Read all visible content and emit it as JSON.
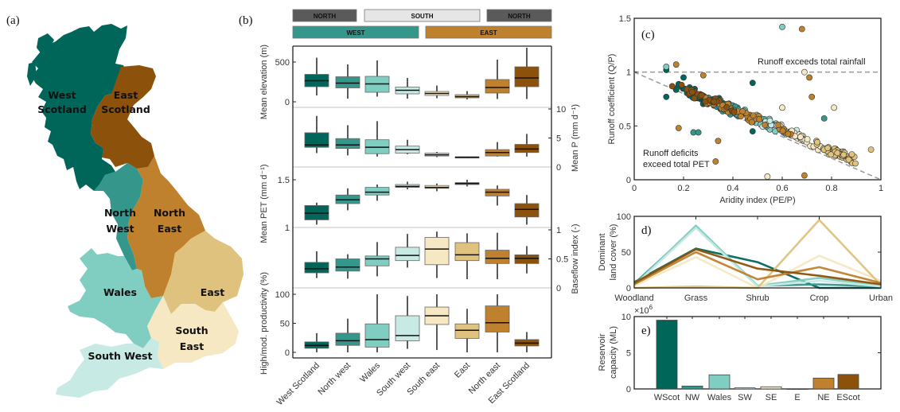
{
  "figure": {
    "panel_labels": {
      "a": "(a)",
      "b": "(b)",
      "c": "(c)",
      "d": "d)",
      "e": "e)"
    }
  },
  "colors": {
    "west_scotland": "#00665a",
    "north_west": "#35968c",
    "wales": "#80cdc1",
    "south_west": "#c7eae5",
    "south_east": "#f6e8c3",
    "east": "#dfc27d",
    "north_east": "#bf812d",
    "east_scotland": "#8c510a",
    "north_header": "#5a5a5a",
    "south_header": "#e6e6e6"
  },
  "map": {
    "regions": [
      {
        "key": "west_scotland",
        "label_lines": [
          "West",
          "Scotland"
        ]
      },
      {
        "key": "east_scotland",
        "label_lines": [
          "East",
          "Scotland"
        ]
      },
      {
        "key": "north_west",
        "label_lines": [
          "North",
          "West"
        ]
      },
      {
        "key": "north_east",
        "label_lines": [
          "North",
          "East"
        ]
      },
      {
        "key": "wales",
        "label_lines": [
          "Wales"
        ]
      },
      {
        "key": "east",
        "label_lines": [
          "East"
        ]
      },
      {
        "key": "south_east",
        "label_lines": [
          "South",
          "East"
        ]
      },
      {
        "key": "south_west",
        "label_lines": [
          "South West"
        ]
      }
    ]
  },
  "headers": {
    "row1": [
      {
        "label": "NORTH",
        "kind": "north"
      },
      {
        "label": "SOUTH",
        "kind": "south"
      },
      {
        "label": "NORTH",
        "kind": "north"
      }
    ],
    "row2": [
      {
        "label": "WEST",
        "kind": "west"
      },
      {
        "label": "EAST",
        "kind": "east"
      }
    ]
  },
  "chart_data": [
    {
      "id": "b",
      "type": "box",
      "categories": [
        "West Scotland",
        "North west",
        "Wales",
        "South west",
        "South east",
        "East",
        "North east",
        "East Scotland"
      ],
      "category_colors": [
        "west_scotland",
        "north_west",
        "wales",
        "south_west",
        "south_east",
        "east",
        "north_east",
        "east_scotland"
      ],
      "subplots": [
        {
          "ylabel": "Mean elevation (m)",
          "side": "left",
          "ylim": [
            -50,
            700
          ],
          "ticks": [
            0,
            500
          ],
          "boxes": [
            {
              "whislo": 80,
              "q1": 190,
              "med": 265,
              "q3": 345,
              "whishi": 555
            },
            {
              "whislo": 40,
              "q1": 175,
              "med": 235,
              "q3": 315,
              "whishi": 470
            },
            {
              "whislo": 65,
              "q1": 120,
              "med": 225,
              "q3": 320,
              "whishi": 520
            },
            {
              "whislo": 40,
              "q1": 100,
              "med": 145,
              "q3": 185,
              "whishi": 300
            },
            {
              "whislo": 45,
              "q1": 80,
              "med": 105,
              "q3": 130,
              "whishi": 205
            },
            {
              "whislo": 30,
              "q1": 50,
              "med": 65,
              "q3": 90,
              "whishi": 135
            },
            {
              "whislo": 35,
              "q1": 110,
              "med": 180,
              "q3": 280,
              "whishi": 530
            },
            {
              "whislo": 35,
              "q1": 190,
              "med": 300,
              "q3": 440,
              "whishi": 680
            }
          ]
        },
        {
          "ylabel": "Mean P (mm d⁻¹)",
          "side": "right",
          "ylim": [
            0,
            11
          ],
          "ticks": [
            0,
            5,
            10
          ],
          "boxes": [
            {
              "whislo": 2.4,
              "q1": 3.4,
              "med": 3.8,
              "q3": 5.9,
              "whishi": 8.8
            },
            {
              "whislo": 2.0,
              "q1": 3.2,
              "med": 3.8,
              "q3": 4.9,
              "whishi": 7.2
            },
            {
              "whislo": 1.8,
              "q1": 2.3,
              "med": 3.4,
              "q3": 4.7,
              "whishi": 7.9
            },
            {
              "whislo": 2.2,
              "q1": 2.4,
              "med": 3.0,
              "q3": 3.6,
              "whishi": 4.7
            },
            {
              "whislo": 1.7,
              "q1": 1.9,
              "med": 2.1,
              "q3": 2.4,
              "whishi": 2.6
            },
            {
              "whislo": 1.6,
              "q1": 1.7,
              "med": 1.7,
              "q3": 1.75,
              "whishi": 1.8
            },
            {
              "whislo": 1.8,
              "q1": 1.9,
              "med": 2.5,
              "q3": 3.0,
              "whishi": 4.3
            },
            {
              "whislo": 1.8,
              "q1": 2.5,
              "med": 3.1,
              "q3": 3.9,
              "whishi": 5.7
            }
          ]
        },
        {
          "ylabel": "Mean PET (mm d⁻¹)",
          "side": "left",
          "ylim": [
            1.0,
            1.62
          ],
          "ticks": [
            1,
            1.5
          ],
          "boxes": [
            {
              "whislo": 1.03,
              "q1": 1.08,
              "med": 1.15,
              "q3": 1.23,
              "whishi": 1.26
            },
            {
              "whislo": 1.18,
              "q1": 1.25,
              "med": 1.29,
              "q3": 1.34,
              "whishi": 1.41
            },
            {
              "whislo": 1.28,
              "q1": 1.34,
              "med": 1.37,
              "q3": 1.42,
              "whishi": 1.45
            },
            {
              "whislo": 1.4,
              "q1": 1.42,
              "med": 1.43,
              "q3": 1.45,
              "whishi": 1.48
            },
            {
              "whislo": 1.38,
              "q1": 1.41,
              "med": 1.42,
              "q3": 1.44,
              "whishi": 1.46
            },
            {
              "whislo": 1.43,
              "q1": 1.45,
              "med": 1.46,
              "q3": 1.47,
              "whishi": 1.5
            },
            {
              "whislo": 1.23,
              "q1": 1.33,
              "med": 1.37,
              "q3": 1.4,
              "whishi": 1.44
            },
            {
              "whislo": 1.03,
              "q1": 1.11,
              "med": 1.19,
              "q3": 1.25,
              "whishi": 1.34
            }
          ]
        },
        {
          "ylabel": "Baseflow index (-)",
          "side": "right",
          "ylim": [
            0,
            1.05
          ],
          "ticks": [
            0,
            0.5,
            1
          ],
          "boxes": [
            {
              "whislo": 0.17,
              "q1": 0.26,
              "med": 0.33,
              "q3": 0.44,
              "whishi": 0.63
            },
            {
              "whislo": 0.16,
              "q1": 0.29,
              "med": 0.36,
              "q3": 0.5,
              "whishi": 0.58
            },
            {
              "whislo": 0.2,
              "q1": 0.38,
              "med": 0.5,
              "q3": 0.55,
              "whishi": 0.79
            },
            {
              "whislo": 0.35,
              "q1": 0.47,
              "med": 0.56,
              "q3": 0.7,
              "whishi": 0.93
            },
            {
              "whislo": 0.17,
              "q1": 0.4,
              "med": 0.67,
              "q3": 0.87,
              "whishi": 0.97
            },
            {
              "whislo": 0.15,
              "q1": 0.47,
              "med": 0.57,
              "q3": 0.78,
              "whishi": 0.94
            },
            {
              "whislo": 0.15,
              "q1": 0.42,
              "med": 0.51,
              "q3": 0.65,
              "whishi": 0.95
            },
            {
              "whislo": 0.25,
              "q1": 0.42,
              "med": 0.51,
              "q3": 0.57,
              "whishi": 0.72
            }
          ]
        },
        {
          "ylabel": "High/mod. productivity (%)",
          "side": "left",
          "ylim": [
            0,
            110
          ],
          "ticks": [
            0,
            50,
            100
          ],
          "boxes": [
            {
              "whislo": 0,
              "q1": 7,
              "med": 12,
              "q3": 18,
              "whishi": 33
            },
            {
              "whislo": 0,
              "q1": 12,
              "med": 20,
              "q3": 33,
              "whishi": 58
            },
            {
              "whislo": 0,
              "q1": 9,
              "med": 22,
              "q3": 49,
              "whishi": 100
            },
            {
              "whislo": 6,
              "q1": 20,
              "med": 29,
              "q3": 63,
              "whishi": 97
            },
            {
              "whislo": 4,
              "q1": 48,
              "med": 63,
              "q3": 78,
              "whishi": 100
            },
            {
              "whislo": 0,
              "q1": 24,
              "med": 38,
              "q3": 49,
              "whishi": 75
            },
            {
              "whislo": 0,
              "q1": 35,
              "med": 51,
              "q3": 80,
              "whishi": 100
            },
            {
              "whislo": 0,
              "q1": 11,
              "med": 16,
              "q3": 22,
              "whishi": 35
            }
          ]
        }
      ]
    },
    {
      "id": "c",
      "type": "scatter",
      "title": "",
      "xlabel": "Aridity index (PE/P)",
      "ylabel": "Runoff coefficient (Q/P)",
      "xlim": [
        0,
        1
      ],
      "ylim": [
        0,
        1.5
      ],
      "xticks": [
        0,
        0.2,
        0.4,
        0.6,
        0.8,
        1
      ],
      "yticks": [
        0,
        0.5,
        1,
        1.5
      ],
      "annotations": [
        "Runoff exceeds total rainfall",
        "Runoff deficits",
        "exceed total PET"
      ],
      "reference_lines": [
        {
          "kind": "horizontal",
          "y": 1,
          "style": "dashed"
        },
        {
          "kind": "diagonal",
          "from": [
            0,
            1
          ],
          "to": [
            1,
            0
          ],
          "style": "dashed"
        }
      ],
      "series": [
        {
          "name": "West Scotland",
          "color": "west_scotland",
          "center_x": 0.3,
          "spread_x": 0.12,
          "points": [
            [
              0.13,
              1.02
            ],
            [
              0.13,
              0.77
            ],
            [
              0.2,
              0.95
            ],
            [
              0.48,
              0.9
            ],
            [
              0.48,
              0.45
            ]
          ]
        },
        {
          "name": "North west",
          "color": "north_west",
          "center_x": 0.4,
          "spread_x": 0.12,
          "points": [
            [
              0.24,
              0.44
            ],
            [
              0.26,
              0.44
            ],
            [
              0.77,
              0.57
            ]
          ]
        },
        {
          "name": "Wales",
          "color": "wales",
          "center_x": 0.5,
          "spread_x": 0.14,
          "points": [
            [
              0.13,
              1.05
            ],
            [
              0.6,
              1.42
            ]
          ]
        },
        {
          "name": "South west",
          "color": "south_west",
          "center_x": 0.6,
          "spread_x": 0.12,
          "points": []
        },
        {
          "name": "South east",
          "color": "south_east",
          "center_x": 0.72,
          "spread_x": 0.14,
          "points": [
            [
              0.69,
              1.0
            ],
            [
              0.81,
              0.67
            ],
            [
              0.54,
              0.03
            ],
            [
              0.6,
              0.67
            ]
          ]
        },
        {
          "name": "East",
          "color": "east",
          "center_x": 0.82,
          "spread_x": 0.08,
          "points": [
            [
              0.96,
              0.28
            ]
          ]
        },
        {
          "name": "North east",
          "color": "north_east",
          "center_x": 0.45,
          "spread_x": 0.2,
          "points": [
            [
              0.17,
              1.07
            ],
            [
              0.28,
              0.97
            ],
            [
              0.68,
              1.4
            ],
            [
              0.71,
              0.95
            ],
            [
              0.72,
              0.77
            ],
            [
              0.18,
              0.48
            ],
            [
              0.34,
              0.36
            ],
            [
              0.33,
              0.17
            ],
            [
              0.69,
              0.04
            ]
          ]
        },
        {
          "name": "East Scotland",
          "color": "east_scotland",
          "center_x": 0.3,
          "spread_x": 0.12,
          "points": []
        }
      ]
    },
    {
      "id": "d",
      "type": "line",
      "ylabel": "Dominant land cover (%)",
      "categories": [
        "Woodland",
        "Grass",
        "Shrub",
        "Crop",
        "Urban"
      ],
      "ylim": [
        0,
        100
      ],
      "yticks": [
        0,
        50,
        100
      ],
      "series": [
        {
          "name": "West Scotland",
          "color": "west_scotland",
          "values": [
            8,
            55,
            36,
            0,
            0
          ]
        },
        {
          "name": "North west",
          "color": "north_west",
          "values": [
            6,
            85,
            3,
            5,
            2
          ]
        },
        {
          "name": "Wales",
          "color": "wales",
          "values": [
            4,
            87,
            3,
            14,
            3
          ]
        },
        {
          "name": "South west",
          "color": "south_west",
          "values": [
            3,
            84,
            2,
            10,
            2
          ]
        },
        {
          "name": "South east",
          "color": "south_east",
          "values": [
            3,
            43,
            0,
            45,
            10
          ]
        },
        {
          "name": "East",
          "color": "east",
          "values": [
            0,
            2,
            0,
            95,
            4
          ]
        },
        {
          "name": "North east",
          "color": "north_east",
          "values": [
            5,
            50,
            12,
            29,
            7
          ]
        },
        {
          "name": "East Scotland",
          "color": "east_scotland",
          "values": [
            7,
            54,
            27,
            17,
            5
          ]
        }
      ]
    },
    {
      "id": "e",
      "type": "bar",
      "ylabel": "Reservoir capacity (ML)",
      "exponent_label": "×10",
      "exponent_sup": "6",
      "categories": [
        "WScot",
        "NW",
        "Wales",
        "SW",
        "SE",
        "E",
        "NE",
        "EScot"
      ],
      "colors": [
        "west_scotland",
        "north_west",
        "wales",
        "south_west",
        "south_east",
        "east",
        "north_east",
        "east_scotland"
      ],
      "values": [
        9500000,
        400000,
        1950000,
        150000,
        300000,
        20000,
        1500000,
        2000000
      ],
      "ylim": [
        0,
        10000000
      ],
      "yticks": [
        0,
        5000000,
        10000000
      ],
      "ytick_labels": [
        "0",
        "5",
        "10"
      ]
    }
  ]
}
